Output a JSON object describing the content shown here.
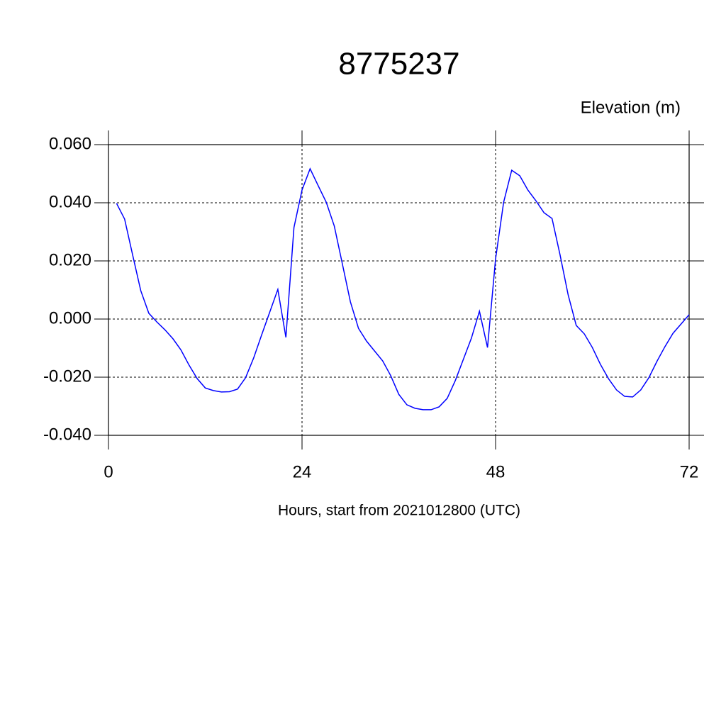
{
  "chart_data": {
    "type": "line",
    "title": "8775237",
    "subtitle": "Elevation (m)",
    "x_label": "Hours, start from 2021012800 (UTC)",
    "x": [
      1,
      2,
      3,
      4,
      5,
      6,
      7,
      8,
      9,
      10,
      11,
      12,
      13,
      14,
      15,
      16,
      17,
      18,
      19,
      20,
      21,
      22,
      23,
      24,
      25,
      26,
      27,
      28,
      29,
      30,
      31,
      32,
      33,
      34,
      35,
      36,
      37,
      38,
      39,
      40,
      41,
      42,
      43,
      44,
      45,
      46,
      47,
      48,
      49,
      50,
      51,
      52,
      53,
      54,
      55,
      56,
      57,
      58,
      59,
      60,
      61,
      62,
      63,
      64,
      65,
      66,
      67,
      68,
      69,
      70,
      71,
      72
    ],
    "series": [
      {
        "color": "#0000ff",
        "values": [
          0.0398,
          0.0344,
          0.022,
          0.0098,
          0.002,
          -0.001,
          -0.0037,
          -0.0068,
          -0.0107,
          -0.0159,
          -0.0205,
          -0.0237,
          -0.0246,
          -0.0251,
          -0.025,
          -0.0241,
          -0.0202,
          -0.0134,
          -0.0054,
          0.0024,
          0.0102,
          -0.0063,
          0.0315,
          0.0444,
          0.0517,
          0.0459,
          0.0402,
          0.032,
          0.019,
          0.0059,
          -0.0032,
          -0.0076,
          -0.011,
          -0.0144,
          -0.0195,
          -0.0259,
          -0.0295,
          -0.0307,
          -0.0312,
          -0.0312,
          -0.0302,
          -0.0273,
          -0.0212,
          -0.0139,
          -0.0066,
          0.0027,
          -0.0098,
          0.0207,
          0.0402,
          0.0512,
          0.0493,
          0.0444,
          0.0407,
          0.0366,
          0.0346,
          0.022,
          0.0083,
          -0.0022,
          -0.0051,
          -0.0098,
          -0.0156,
          -0.0205,
          -0.0244,
          -0.0266,
          -0.0268,
          -0.0244,
          -0.0202,
          -0.0146,
          -0.0095,
          -0.0049,
          -0.0017,
          0.0015
        ]
      }
    ],
    "xlim": [
      0,
      72
    ],
    "xticks": [
      0,
      24,
      48,
      72
    ],
    "ylim": [
      -0.04,
      0.06
    ],
    "yticks": [
      {
        "value": -0.04,
        "label": "-0.040"
      },
      {
        "value": -0.02,
        "label": "-0.020"
      },
      {
        "value": 0,
        "label": "0.000"
      },
      {
        "value": 0.02,
        "label": "0.020"
      },
      {
        "value": 0.04,
        "label": "0.040"
      },
      {
        "value": 0.06,
        "label": "0.060"
      }
    ],
    "grid": true
  }
}
